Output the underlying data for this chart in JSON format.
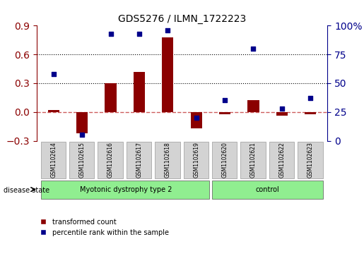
{
  "title": "GDS5276 / ILMN_1722223",
  "samples": [
    "GSM1102614",
    "GSM1102615",
    "GSM1102616",
    "GSM1102617",
    "GSM1102618",
    "GSM1102619",
    "GSM1102620",
    "GSM1102621",
    "GSM1102622",
    "GSM1102623"
  ],
  "transformed_count": [
    0.02,
    -0.22,
    0.3,
    0.42,
    0.78,
    -0.17,
    -0.02,
    0.12,
    -0.04,
    -0.02
  ],
  "percentile_rank": [
    58,
    5,
    93,
    93,
    96,
    20,
    35,
    80,
    28,
    37
  ],
  "ylim_left": [
    -0.3,
    0.9
  ],
  "ylim_right": [
    0,
    100
  ],
  "yticks_left": [
    -0.3,
    0.0,
    0.3,
    0.6,
    0.9
  ],
  "yticks_right": [
    0,
    25,
    50,
    75,
    100
  ],
  "hlines": [
    0.3,
    0.6
  ],
  "groups": [
    {
      "label": "Myotonic dystrophy type 2",
      "indices": [
        0,
        1,
        2,
        3,
        4,
        5
      ],
      "color": "#90ee90"
    },
    {
      "label": "control",
      "indices": [
        6,
        7,
        8,
        9
      ],
      "color": "#90ee90"
    }
  ],
  "bar_color": "#8B0000",
  "scatter_color": "#00008B",
  "dashed_line_color": "#cd5c5c",
  "dotted_line_color": "#000000",
  "bg_plot": "#ffffff",
  "bg_label": "#d3d3d3",
  "legend_items": [
    "transformed count",
    "percentile rank within the sample"
  ],
  "disease_state_label": "disease state"
}
